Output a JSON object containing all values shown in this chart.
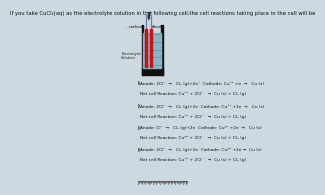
{
  "bg_color": "#ccd9e0",
  "title": "If you take CuCl₂(aq) as the electrolyte solution in the following cell,the cell reactions taking place in the cell will be",
  "title_fontsize": 3.8,
  "options": [
    {
      "line1": "Anode: 2Cl⁻  →   Cl₂ (g)+2e⁻  Cathode: Cu⁺² +e  →   Cu (s)",
      "line2": "Net cell Reaction: Cu⁺² + 2Cl⁻   →  Cu (s) + Cl₂ (g)"
    },
    {
      "line1": "Anode: 2Cl⁻  →   Cl₂ (g)+2e  Cathode: Cu⁺¹ +1e  →   Cu (s)",
      "line2": "Net cell Reaction: Cu⁺² + 2Cl⁻   →  Cu (s) + Cl₂ (g)"
    },
    {
      "line1": "Anode: Cl⁻  →   Cl₂ (g)+2e  Cathode: Cu*² +2e  →   Cu (s)",
      "line2": "Net cell Reaction: Cu*² + 2Cl⁻   →  Cu (s) + Cl₂ (g)"
    },
    {
      "line1": "Anode: 2Cl⁻  →   Cl₂ (g)+2e  Cathode: Cu*² +2e →  Cu (s)",
      "line2": "Net cell Reaction: Cu⁺² + 2Cl⁻   →  Cu (s) + Cl₂ (g)"
    }
  ],
  "cell_label_cathode": "- cathode",
  "cell_label_anode": "Anode",
  "cell_label_solution": "Electrolytic\nSolution",
  "text_color": "#111111",
  "option_fontsize": 3.1,
  "radio_color": "#666666",
  "wire_color": "#7777bb",
  "electrode_color": "#cc1111",
  "solution_color": "#8ab4c8",
  "solution_line_color": "#5590aa",
  "cell_wall_color": "#111111",
  "battery_color": "#9999bb"
}
